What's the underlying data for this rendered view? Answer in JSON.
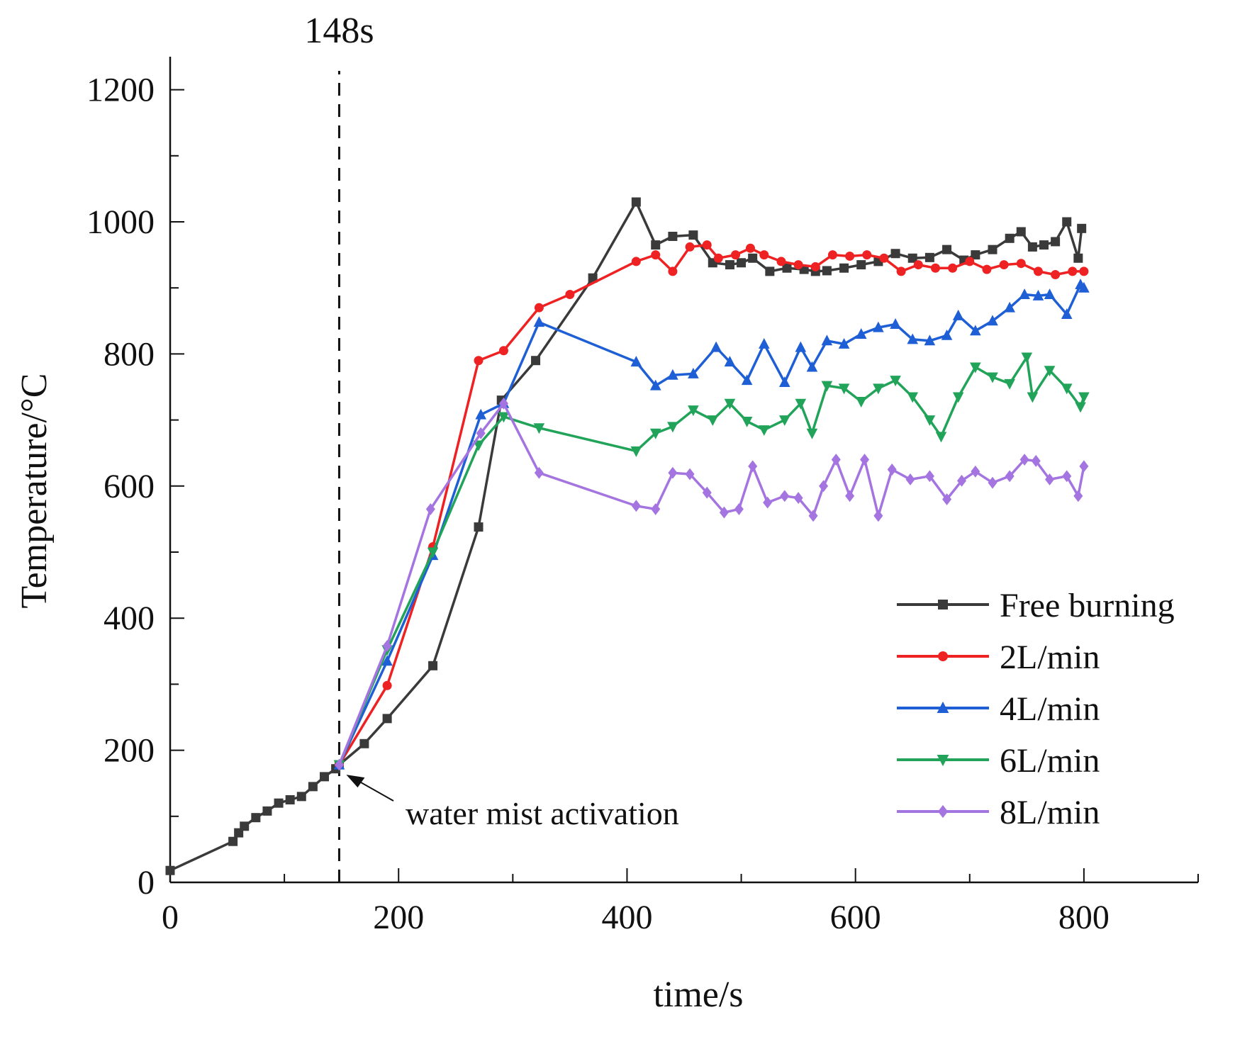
{
  "chart_data": {
    "type": "line",
    "title": "",
    "xlabel": "time/s",
    "ylabel": "Temperature/°C",
    "xlim": [
      0,
      900
    ],
    "ylim": [
      0,
      1250
    ],
    "xticks": [
      0,
      200,
      400,
      600,
      800
    ],
    "yticks": [
      0,
      200,
      400,
      600,
      800,
      1000,
      1200
    ],
    "activation": {
      "x": 148,
      "label": "148s",
      "annotation": "water mist activation"
    },
    "series": [
      {
        "name": "Free burning",
        "color": "#3a3a3a",
        "marker": "square",
        "x": [
          0,
          55,
          60,
          65,
          75,
          85,
          95,
          105,
          115,
          125,
          135,
          145,
          148,
          170,
          190,
          230,
          270,
          290,
          320,
          370,
          408,
          425,
          440,
          458,
          475,
          490,
          500,
          510,
          525,
          540,
          555,
          565,
          575,
          590,
          605,
          620,
          635,
          650,
          665,
          680,
          695,
          705,
          720,
          735,
          745,
          755,
          765,
          775,
          785,
          795,
          798
        ],
        "y": [
          18,
          62,
          75,
          85,
          98,
          108,
          120,
          125,
          130,
          145,
          160,
          172,
          178,
          210,
          248,
          328,
          538,
          730,
          790,
          915,
          1030,
          965,
          978,
          980,
          938,
          935,
          938,
          945,
          925,
          930,
          928,
          925,
          926,
          930,
          935,
          940,
          952,
          945,
          946,
          958,
          942,
          950,
          958,
          975,
          985,
          962,
          965,
          970,
          1000,
          945,
          990
        ]
      },
      {
        "name": "2L/min",
        "color": "#ee2222",
        "marker": "circle",
        "x": [
          148,
          190,
          230,
          270,
          292,
          323,
          350,
          408,
          425,
          440,
          455,
          470,
          480,
          495,
          508,
          520,
          535,
          550,
          565,
          580,
          595,
          610,
          625,
          640,
          655,
          670,
          685,
          700,
          715,
          730,
          745,
          760,
          775,
          790,
          800
        ],
        "y": [
          178,
          298,
          508,
          790,
          805,
          870,
          890,
          940,
          950,
          925,
          962,
          965,
          945,
          950,
          960,
          950,
          940,
          935,
          932,
          950,
          948,
          950,
          945,
          925,
          935,
          930,
          930,
          940,
          928,
          935,
          937,
          925,
          920,
          925,
          925
        ]
      },
      {
        "name": "4L/min",
        "color": "#1f5fd6",
        "marker": "triangle-up",
        "x": [
          148,
          190,
          230,
          272,
          292,
          323,
          408,
          425,
          440,
          458,
          478,
          490,
          505,
          520,
          538,
          552,
          562,
          575,
          590,
          605,
          620,
          635,
          650,
          665,
          680,
          690,
          705,
          720,
          735,
          748,
          760,
          770,
          785,
          797,
          800
        ],
        "y": [
          178,
          335,
          495,
          708,
          725,
          848,
          788,
          752,
          768,
          770,
          810,
          788,
          760,
          815,
          757,
          810,
          780,
          820,
          815,
          830,
          840,
          845,
          822,
          820,
          828,
          858,
          835,
          850,
          870,
          890,
          888,
          890,
          860,
          905,
          900
        ]
      },
      {
        "name": "6L/min",
        "color": "#22a35a",
        "marker": "triangle-down",
        "x": [
          148,
          190,
          230,
          270,
          292,
          323,
          408,
          425,
          440,
          458,
          475,
          490,
          505,
          520,
          538,
          552,
          562,
          575,
          590,
          605,
          620,
          635,
          650,
          665,
          675,
          690,
          705,
          720,
          735,
          750,
          755,
          770,
          785,
          797,
          800
        ],
        "y": [
          178,
          352,
          500,
          662,
          705,
          688,
          653,
          680,
          690,
          715,
          700,
          725,
          698,
          685,
          700,
          725,
          680,
          752,
          748,
          728,
          748,
          760,
          735,
          700,
          675,
          735,
          780,
          765,
          755,
          795,
          735,
          775,
          748,
          720,
          735
        ]
      },
      {
        "name": "8L/min",
        "color": "#a474e0",
        "marker": "diamond",
        "x": [
          148,
          190,
          228,
          272,
          292,
          323,
          408,
          425,
          440,
          455,
          470,
          485,
          498,
          510,
          523,
          538,
          550,
          563,
          572,
          583,
          595,
          608,
          620,
          632,
          648,
          665,
          680,
          693,
          705,
          720,
          735,
          748,
          758,
          770,
          785,
          795,
          800
        ],
        "y": [
          178,
          358,
          565,
          680,
          725,
          620,
          570,
          565,
          620,
          618,
          590,
          560,
          565,
          630,
          575,
          585,
          582,
          555,
          600,
          640,
          585,
          640,
          555,
          625,
          610,
          615,
          580,
          608,
          622,
          605,
          615,
          640,
          638,
          610,
          615,
          585,
          630
        ]
      }
    ],
    "legend": {
      "position": "lower-right",
      "entries": [
        "Free burning",
        "2L/min",
        "4L/min",
        "6L/min",
        "8L/min"
      ]
    }
  }
}
